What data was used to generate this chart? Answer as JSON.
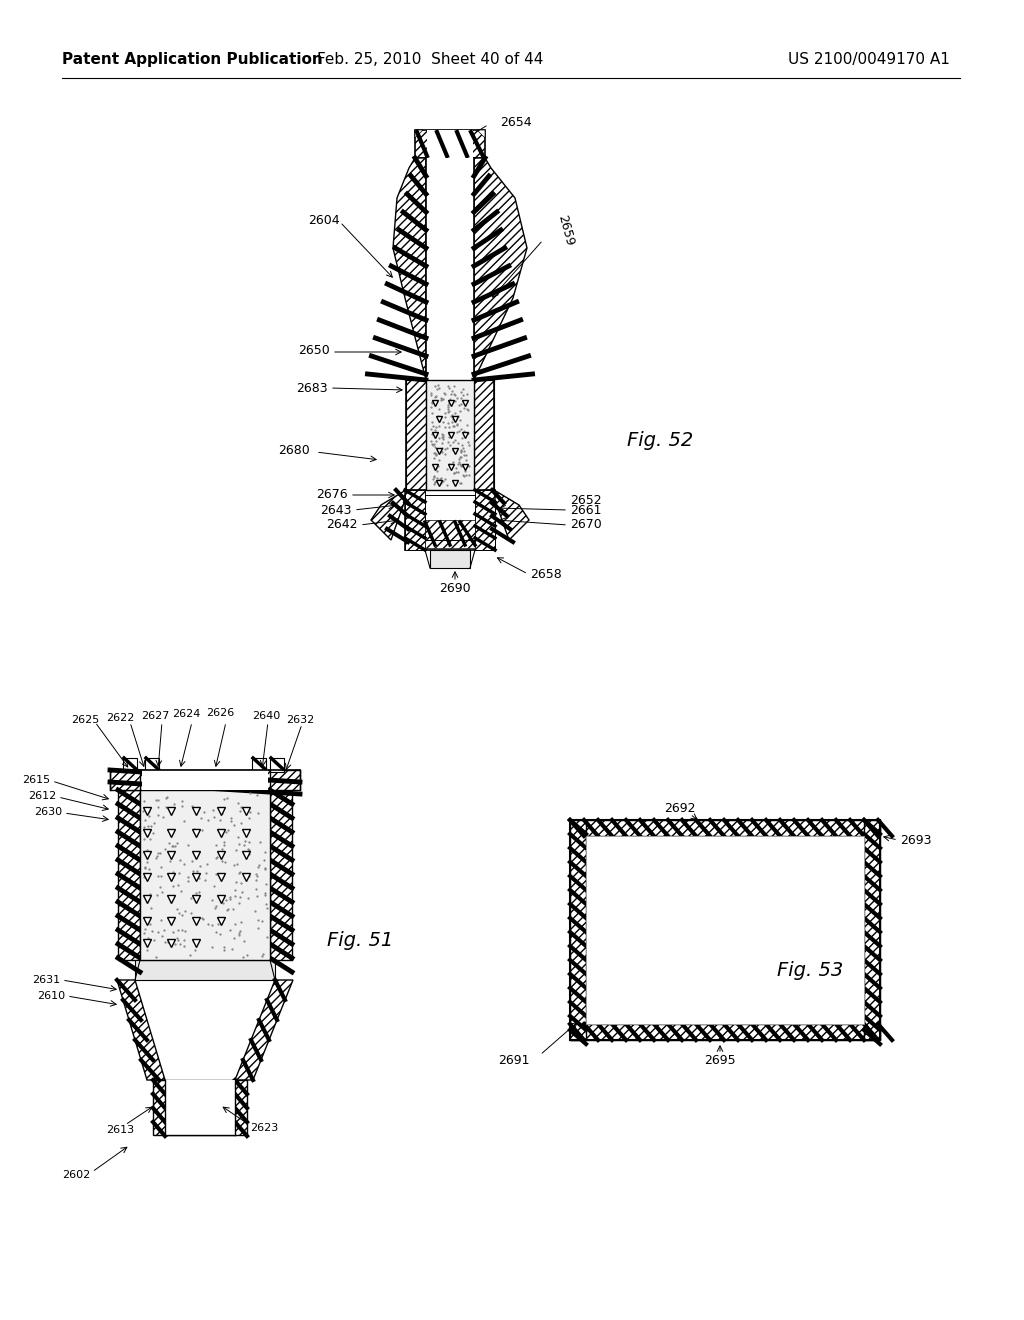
{
  "bg": "#ffffff",
  "header_left": "Patent Application Publication",
  "header_center": "Feb. 25, 2010  Sheet 40 of 44",
  "header_right": "US 2100/0049170 A1",
  "fig52_label": "Fig. 52",
  "fig51_label": "Fig. 51",
  "fig53_label": "Fig. 53"
}
